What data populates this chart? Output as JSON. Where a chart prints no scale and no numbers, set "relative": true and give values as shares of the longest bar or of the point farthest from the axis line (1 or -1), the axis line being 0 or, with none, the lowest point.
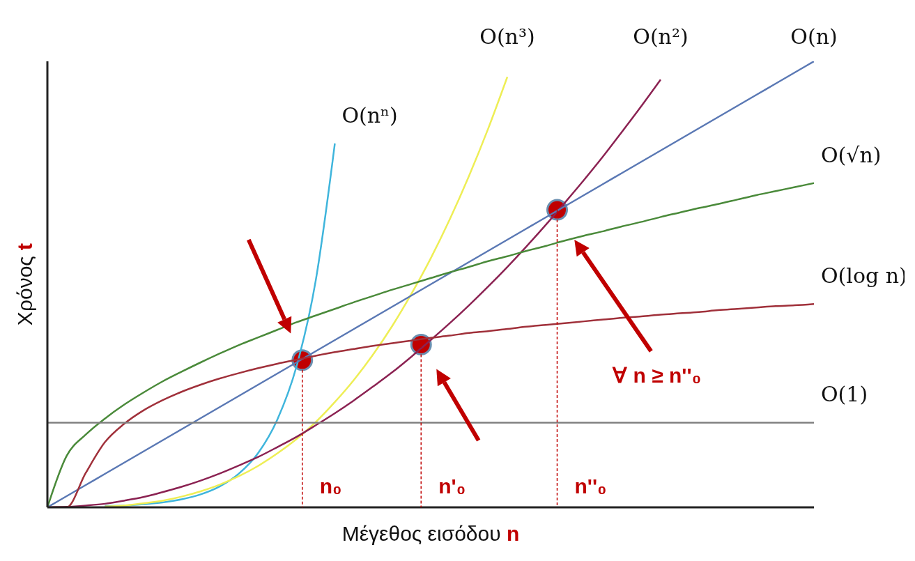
{
  "chart_data": {
    "type": "line",
    "relative": true,
    "xlabel": "Μέγεθος εισόδου n",
    "ylabel": "Χρόνος t",
    "grid": false,
    "legend": false,
    "marker": "none",
    "line_style": "solid",
    "categories": [
      null,
      null,
      null,
      null,
      null,
      null,
      null,
      null,
      null,
      null,
      null,
      null,
      null,
      null,
      null,
      null,
      null,
      null,
      null,
      null,
      null,
      null,
      null,
      null,
      null,
      null,
      null,
      null,
      null,
      null,
      null,
      null,
      null,
      null,
      null,
      null,
      null,
      null,
      null,
      null,
      null
    ],
    "series": [
      {
        "name": "O(nⁿ)",
        "color": "#3fb5dc",
        "values": [
          null,
          null,
          null,
          0.003,
          0.004,
          0.007,
          0.011,
          0.018,
          0.029,
          0.047,
          0.076,
          0.122,
          0.197,
          0.316,
          0.508,
          0.816,
          null,
          null,
          null,
          null,
          null,
          null,
          null,
          null,
          null,
          null,
          null,
          null,
          null,
          null,
          null,
          null,
          null,
          null,
          null,
          null,
          null,
          null,
          null,
          null,
          null
        ]
      },
      {
        "name": "O(n³)",
        "color": "#eeee55",
        "values": [
          null,
          null,
          null,
          0.002,
          0.004,
          0.009,
          0.015,
          0.024,
          0.036,
          0.051,
          0.07,
          0.093,
          0.121,
          0.153,
          0.191,
          0.236,
          0.286,
          0.343,
          0.407,
          0.479,
          0.558,
          0.646,
          0.743,
          0.849,
          0.965,
          null,
          null,
          null,
          null,
          null,
          null,
          null,
          null,
          null,
          null,
          null,
          null,
          null,
          null,
          null,
          null
        ]
      },
      {
        "name": "O(n²)",
        "color": "#8b2252",
        "values": [
          0,
          0.001,
          0.004,
          0.008,
          0.015,
          0.023,
          0.034,
          0.046,
          0.06,
          0.076,
          0.094,
          0.113,
          0.135,
          0.158,
          0.184,
          0.211,
          0.24,
          0.271,
          0.303,
          0.338,
          0.375,
          0.413,
          0.453,
          0.495,
          0.539,
          0.585,
          0.633,
          0.683,
          0.734,
          0.787,
          0.843,
          0.9,
          0.959,
          null,
          null,
          null,
          null,
          null,
          null,
          null,
          null
        ]
      },
      {
        "name": "O(n)",
        "color": "#5a78b4",
        "values": [
          0,
          0.025,
          0.05,
          0.075,
          0.1,
          0.125,
          0.15,
          0.175,
          0.2,
          0.225,
          0.25,
          0.275,
          0.3,
          0.325,
          0.35,
          0.375,
          0.4,
          0.425,
          0.45,
          0.475,
          0.5,
          0.525,
          0.55,
          0.575,
          0.6,
          0.625,
          0.65,
          0.675,
          0.7,
          0.725,
          0.75,
          0.775,
          0.8,
          0.825,
          0.85,
          0.875,
          0.9,
          0.925,
          0.95,
          0.975,
          1
        ]
      },
      {
        "name": "O(√n)",
        "color": "#4a8a3a",
        "values": [
          0,
          0.115,
          0.163,
          0.199,
          0.23,
          0.257,
          0.282,
          0.304,
          0.325,
          0.345,
          0.364,
          0.381,
          0.398,
          0.415,
          0.43,
          0.445,
          0.46,
          0.474,
          0.488,
          0.501,
          0.514,
          0.527,
          0.539,
          0.552,
          0.563,
          0.575,
          0.586,
          0.598,
          0.609,
          0.619,
          0.63,
          0.64,
          0.651,
          0.661,
          0.671,
          0.68,
          0.69,
          0.7,
          0.709,
          0.718,
          0.727
        ]
      },
      {
        "name": "O(log n)",
        "color": "#a0303a",
        "values": [
          0,
          0,
          0.077,
          0.146,
          0.187,
          0.217,
          0.24,
          0.259,
          0.275,
          0.289,
          0.301,
          0.312,
          0.322,
          0.331,
          0.34,
          0.348,
          0.355,
          0.362,
          0.368,
          0.374,
          0.38,
          0.385,
          0.391,
          0.395,
          0.4,
          0.405,
          0.409,
          0.413,
          0.417,
          0.421,
          0.425,
          0.428,
          0.432,
          0.435,
          0.438,
          0.442,
          0.445,
          0.448,
          0.451,
          0.453,
          0.456
        ]
      },
      {
        "name": "O(1)",
        "color": "#808080",
        "values": [
          0.19,
          0.19,
          0.19,
          0.19,
          0.19,
          0.19,
          0.19,
          0.19,
          0.19,
          0.19,
          0.19,
          0.19,
          0.19,
          0.19,
          0.19,
          0.19,
          0.19,
          0.19,
          0.19,
          0.19,
          0.19,
          0.19,
          0.19,
          0.19,
          0.19,
          0.19,
          0.19,
          0.19,
          0.19,
          0.19,
          0.19,
          0.19,
          0.19,
          0.19,
          0.19,
          0.19,
          0.19,
          0.19,
          0.19,
          0.19,
          0.19
        ]
      }
    ],
    "annotations": [
      "n₀",
      "n'₀",
      "n''₀",
      "∀ n ≥ n''₀"
    ]
  }
}
